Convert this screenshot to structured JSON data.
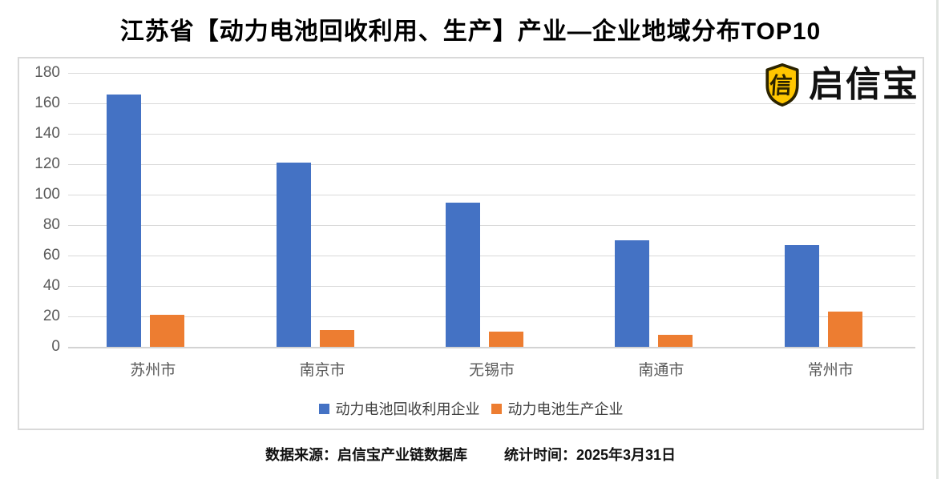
{
  "title": "江苏省【动力电池回收利用、生产】产业—企业地域分布TOP10",
  "logo": {
    "text": "启信宝",
    "shield_glyph": "信",
    "shield_fill": "#FFC600",
    "shield_border": "#2B2300"
  },
  "footer": {
    "source": "数据来源：启信宝产业链数据库",
    "time": "统计时间：2025年3月31日"
  },
  "chart_data": {
    "type": "bar",
    "categories": [
      "苏州市",
      "南京市",
      "无锡市",
      "南通市",
      "常州市"
    ],
    "series": [
      {
        "name": "动力电池回收利用企业",
        "color": "#4472C4",
        "values": [
          166,
          121,
          95,
          70,
          67
        ]
      },
      {
        "name": "动力电池生产企业",
        "color": "#ED7D31",
        "values": [
          21,
          11,
          10,
          8,
          23
        ]
      }
    ],
    "ylim": [
      0,
      180
    ],
    "yticks": [
      0,
      20,
      40,
      60,
      80,
      100,
      120,
      140,
      160,
      180
    ],
    "xlabel": "",
    "ylabel": "",
    "grid": true,
    "legend_position": "bottom",
    "gridline_color": "#D9D9D9",
    "axis_label_color": "#595959"
  }
}
